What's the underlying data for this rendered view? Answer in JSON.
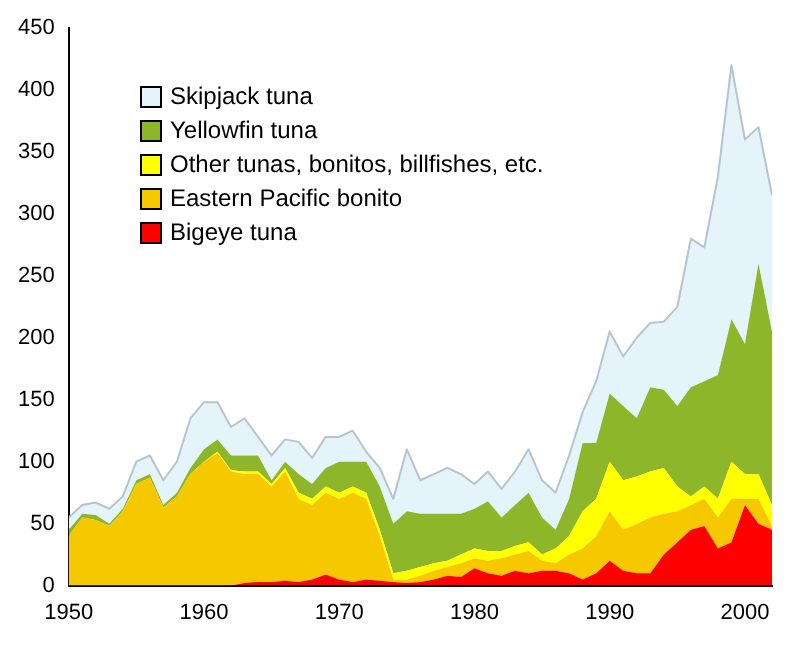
{
  "chart_data": {
    "type": "area",
    "stacked": true,
    "legend": "top left",
    "marker": "none",
    "grid": false,
    "x": [
      1950,
      1951,
      1952,
      1953,
      1954,
      1955,
      1956,
      1957,
      1958,
      1959,
      1960,
      1961,
      1962,
      1963,
      1964,
      1965,
      1966,
      1967,
      1968,
      1969,
      1970,
      1971,
      1972,
      1973,
      1974,
      1975,
      1976,
      1977,
      1978,
      1979,
      1980,
      1981,
      1982,
      1983,
      1984,
      1985,
      1986,
      1987,
      1988,
      1989,
      1990,
      1991,
      1992,
      1993,
      1994,
      1995,
      1996,
      1997,
      1998,
      1999,
      2000,
      2001,
      2002
    ],
    "xlim": [
      1950,
      2002
    ],
    "xticks": [
      1950,
      1960,
      1970,
      1980,
      1990,
      2000
    ],
    "ylim": [
      0,
      450
    ],
    "yticks": [
      0,
      50,
      100,
      150,
      200,
      250,
      300,
      350,
      400,
      450
    ],
    "series": [
      {
        "name": "Bigeye tuna",
        "color": "#ff0000",
        "values": [
          0,
          0,
          0,
          0,
          0,
          0,
          0,
          0,
          0,
          0,
          0,
          0,
          0,
          2,
          3,
          3,
          4,
          3,
          5,
          9,
          5,
          3,
          5,
          4,
          3,
          2,
          3,
          5,
          8,
          7,
          14,
          10,
          8,
          12,
          10,
          12,
          12,
          10,
          5,
          10,
          20,
          12,
          10,
          10,
          25,
          35,
          45,
          48,
          30,
          35,
          65,
          50,
          45
        ]
      },
      {
        "name": "Eastern Pacific bonito",
        "color": "#f5c800",
        "values": [
          40,
          55,
          53,
          48,
          60,
          82,
          87,
          63,
          72,
          90,
          100,
          107,
          92,
          88,
          87,
          77,
          88,
          67,
          60,
          66,
          65,
          72,
          65,
          36,
          2,
          3,
          5,
          7,
          7,
          11,
          8,
          10,
          14,
          13,
          18,
          8,
          6,
          15,
          25,
          30,
          40,
          33,
          40,
          45,
          33,
          25,
          20,
          22,
          25,
          35,
          5,
          20,
          3
        ]
      },
      {
        "name": "Other tunas, bonitos, billfishes, etc.",
        "color": "#ffff00",
        "values": [
          0,
          0,
          0,
          0,
          0,
          0,
          0,
          0,
          0,
          0,
          0,
          1,
          1,
          2,
          2,
          2,
          3,
          5,
          5,
          5,
          5,
          5,
          5,
          5,
          5,
          7,
          7,
          6,
          5,
          7,
          8,
          8,
          6,
          7,
          7,
          5,
          12,
          15,
          30,
          30,
          40,
          40,
          38,
          37,
          37,
          20,
          7,
          10,
          15,
          30,
          20,
          20,
          17
        ]
      },
      {
        "name": "Yellowfin tuna",
        "color": "#8db62a",
        "values": [
          5,
          3,
          4,
          2,
          2,
          3,
          3,
          2,
          3,
          5,
          10,
          10,
          12,
          13,
          13,
          3,
          5,
          15,
          12,
          15,
          25,
          20,
          25,
          35,
          40,
          48,
          43,
          40,
          38,
          33,
          32,
          40,
          27,
          33,
          40,
          30,
          15,
          30,
          55,
          45,
          55,
          60,
          47,
          68,
          63,
          65,
          88,
          85,
          100,
          115,
          105,
          170,
          140
        ]
      },
      {
        "name": "Skipjack tuna",
        "color": "#e4f4fa",
        "values": [
          10,
          7,
          10,
          12,
          10,
          15,
          15,
          20,
          25,
          40,
          38,
          30,
          23,
          30,
          15,
          20,
          18,
          26,
          21,
          25,
          20,
          25,
          8,
          15,
          20,
          50,
          27,
          32,
          37,
          32,
          20,
          24,
          23,
          27,
          35,
          30,
          30,
          35,
          25,
          50,
          50,
          40,
          65,
          52,
          55,
          80,
          120,
          108,
          160,
          205,
          165,
          110,
          110
        ]
      }
    ]
  }
}
